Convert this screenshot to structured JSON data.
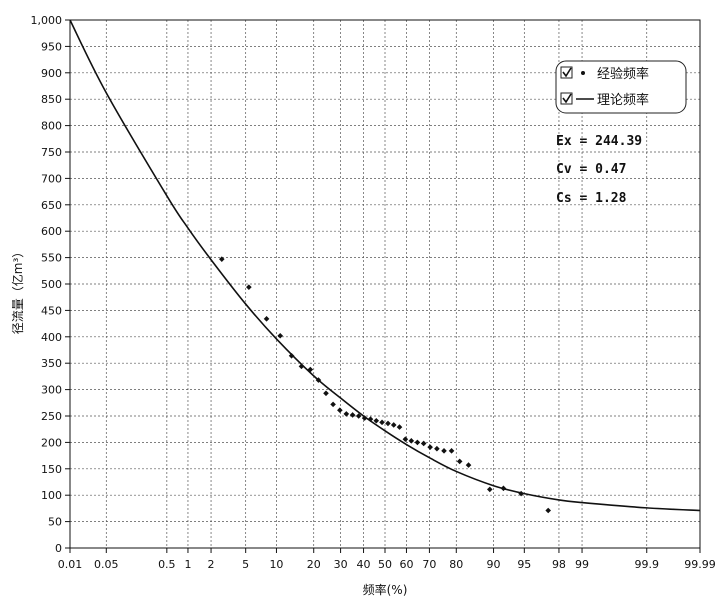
{
  "chart_data": {
    "type": "scatter",
    "xlabel": "频率(%)",
    "ylabel": "径流量（亿m³）",
    "x_scale": "probability",
    "x_ticks": [
      0.01,
      0.05,
      0.5,
      1,
      2,
      5,
      10,
      20,
      30,
      40,
      50,
      60,
      70,
      80,
      90,
      95,
      98,
      99,
      99.9,
      99.99
    ],
    "x_tick_labels": [
      "0.01",
      "0.05",
      "0.5",
      "1",
      "2",
      "5",
      "10",
      "20",
      "30",
      "40",
      "50",
      "60",
      "70",
      "80",
      "90",
      "95",
      "98",
      "99",
      "99.9",
      "99.99"
    ],
    "ylim": [
      0,
      1000
    ],
    "y_ticks": [
      0,
      50,
      100,
      150,
      200,
      250,
      300,
      350,
      400,
      450,
      500,
      550,
      600,
      650,
      700,
      750,
      800,
      850,
      900,
      950,
      1000
    ],
    "y_tick_labels": [
      "0",
      "50",
      "100",
      "150",
      "200",
      "250",
      "300",
      "350",
      "400",
      "450",
      "500",
      "550",
      "600",
      "650",
      "700",
      "750",
      "800",
      "850",
      "900",
      "950",
      "1,000"
    ],
    "grid": true,
    "legend_position": "top-right",
    "series": [
      {
        "name": "经验频率",
        "kind": "scatter",
        "points": [
          [
            2.7,
            547
          ],
          [
            5.4,
            494
          ],
          [
            8.1,
            434
          ],
          [
            10.8,
            402
          ],
          [
            13.5,
            364
          ],
          [
            16.2,
            344
          ],
          [
            18.9,
            338
          ],
          [
            21.6,
            318
          ],
          [
            24.3,
            293
          ],
          [
            27.0,
            272
          ],
          [
            29.7,
            261
          ],
          [
            32.4,
            254
          ],
          [
            35.1,
            252
          ],
          [
            37.8,
            250
          ],
          [
            40.5,
            246
          ],
          [
            43.2,
            244
          ],
          [
            45.9,
            241
          ],
          [
            48.6,
            238
          ],
          [
            51.4,
            236
          ],
          [
            54.1,
            233
          ],
          [
            56.8,
            229
          ],
          [
            59.5,
            206
          ],
          [
            62.2,
            203
          ],
          [
            64.9,
            200
          ],
          [
            67.6,
            198
          ],
          [
            70.3,
            191
          ],
          [
            73.0,
            188
          ],
          [
            75.7,
            184
          ],
          [
            78.4,
            184
          ],
          [
            81.1,
            164
          ],
          [
            83.8,
            157
          ],
          [
            89.2,
            111
          ],
          [
            91.9,
            113
          ],
          [
            94.6,
            103
          ],
          [
            97.3,
            71
          ]
        ]
      },
      {
        "name": "理论频率",
        "kind": "line",
        "points": [
          [
            0.01,
            1000
          ],
          [
            0.05,
            862
          ],
          [
            0.5,
            667
          ],
          [
            1,
            606
          ],
          [
            2,
            546
          ],
          [
            5,
            462
          ],
          [
            10,
            396
          ],
          [
            20,
            326
          ],
          [
            30,
            284
          ],
          [
            40,
            250
          ],
          [
            50,
            222
          ],
          [
            60,
            196
          ],
          [
            70,
            171
          ],
          [
            80,
            145
          ],
          [
            90,
            118
          ],
          [
            95,
            103
          ],
          [
            98,
            91
          ],
          [
            99,
            86
          ],
          [
            99.9,
            76
          ],
          [
            99.99,
            71
          ]
        ]
      }
    ],
    "annotations": [
      "Ex = 244.39",
      "Cv = 0.47",
      "Cs = 1.28"
    ]
  },
  "colors": {
    "line": "#111111",
    "points": "#111111",
    "grid": "#555555",
    "legend_border": "#222222",
    "background": "#ffffff"
  }
}
